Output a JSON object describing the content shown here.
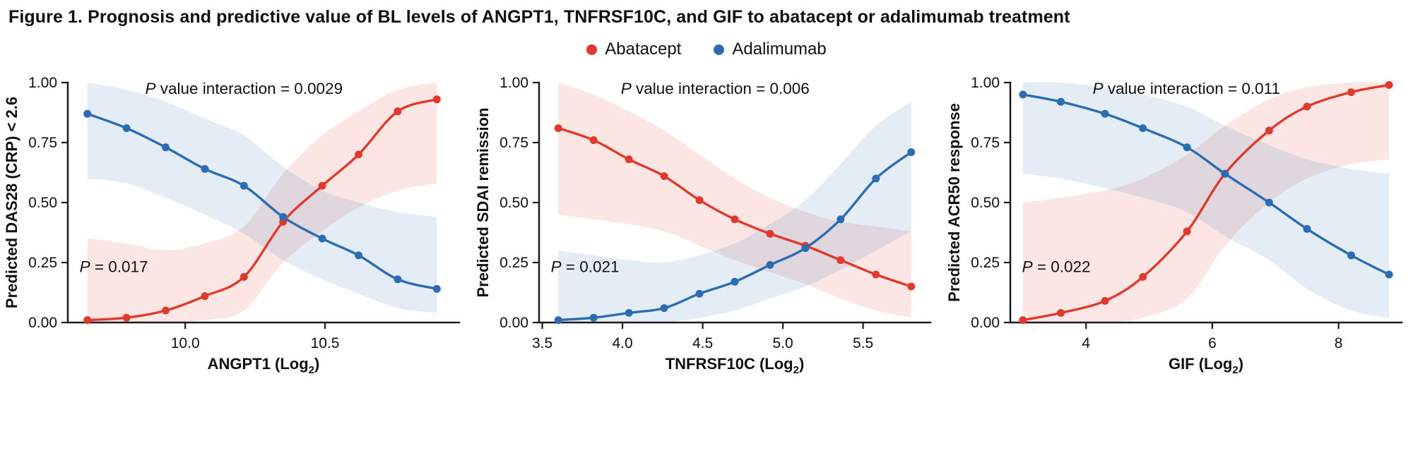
{
  "figure": {
    "title": "Figure 1. Prognosis and predictive value of BL levels of ANGPT1, TNFRSF10C, and GIF to abatacept or adalimumab treatment"
  },
  "legend": {
    "position": "top-center",
    "items": [
      {
        "label": "Abatacept",
        "color": "#e03a2e",
        "marker": "circle"
      },
      {
        "label": "Adalimumab",
        "color": "#2b6cb3",
        "marker": "circle"
      }
    ]
  },
  "chart_data": [
    {
      "id": "angpt1",
      "type": "line",
      "ylabel": "Predicted DAS28 (CRP) < 2.6",
      "xlabel_pre": "ANGPT1 (Log",
      "xlabel_sub": "2",
      "xlabel_post": ")",
      "xlim": [
        9.58,
        10.98
      ],
      "ylim": [
        0,
        1
      ],
      "xticks": [
        10.0,
        10.5
      ],
      "xtick_labels": [
        "10.0",
        "10.5"
      ],
      "yticks": [
        0,
        0.25,
        0.5,
        0.75,
        1
      ],
      "ytick_labels": [
        "0.00",
        "0.25",
        "0.50",
        "0.75",
        "1.00"
      ],
      "grid": false,
      "annotations": {
        "p_interaction": "P value interaction = 0.0029",
        "p_value": "P = 0.017"
      },
      "x": [
        9.65,
        9.79,
        9.93,
        10.07,
        10.21,
        10.35,
        10.49,
        10.62,
        10.76,
        10.9
      ],
      "series": [
        {
          "name": "Abatacept",
          "color": "#e03a2e",
          "values": [
            0.01,
            0.02,
            0.05,
            0.11,
            0.19,
            0.42,
            0.57,
            0.7,
            0.88,
            0.93
          ],
          "band_upper": [
            0.35,
            0.33,
            0.3,
            0.33,
            0.4,
            0.62,
            0.78,
            0.88,
            0.97,
            1.0
          ],
          "band_lower": [
            0.0,
            0.0,
            0.0,
            0.01,
            0.05,
            0.25,
            0.38,
            0.48,
            0.55,
            0.58
          ]
        },
        {
          "name": "Adalimumab",
          "color": "#2b6cb3",
          "values": [
            0.87,
            0.81,
            0.73,
            0.64,
            0.57,
            0.44,
            0.35,
            0.28,
            0.18,
            0.14
          ],
          "band_upper": [
            1.0,
            0.97,
            0.92,
            0.85,
            0.78,
            0.65,
            0.55,
            0.5,
            0.46,
            0.44
          ],
          "band_lower": [
            0.6,
            0.58,
            0.52,
            0.45,
            0.37,
            0.26,
            0.18,
            0.12,
            0.06,
            0.04
          ]
        }
      ]
    },
    {
      "id": "tnfrsf10c",
      "type": "line",
      "ylabel": "Predicted SDAI remission",
      "xlabel_pre": "TNFRSF10C (Log",
      "xlabel_sub": "2",
      "xlabel_post": ")",
      "xlim": [
        3.48,
        5.92
      ],
      "ylim": [
        0,
        1
      ],
      "xticks": [
        3.5,
        4.0,
        4.5,
        5.0,
        5.5
      ],
      "xtick_labels": [
        "3.5",
        "4.0",
        "4.5",
        "5.0",
        "5.5"
      ],
      "yticks": [
        0,
        0.25,
        0.5,
        0.75,
        1
      ],
      "ytick_labels": [
        "0.00",
        "0.25",
        "0.50",
        "0.75",
        "1.00"
      ],
      "grid": false,
      "annotations": {
        "p_interaction": "P value interaction = 0.006",
        "p_value": "P = 0.021"
      },
      "x": [
        3.6,
        3.82,
        4.04,
        4.26,
        4.48,
        4.7,
        4.92,
        5.14,
        5.36,
        5.58,
        5.8
      ],
      "series": [
        {
          "name": "Abatacept",
          "color": "#e03a2e",
          "values": [
            0.81,
            0.76,
            0.68,
            0.61,
            0.51,
            0.43,
            0.37,
            0.32,
            0.26,
            0.2,
            0.15
          ],
          "band_upper": [
            1.0,
            0.95,
            0.88,
            0.8,
            0.7,
            0.6,
            0.52,
            0.46,
            0.42,
            0.4,
            0.38
          ],
          "band_lower": [
            0.45,
            0.43,
            0.41,
            0.38,
            0.32,
            0.26,
            0.21,
            0.16,
            0.1,
            0.05,
            0.02
          ]
        },
        {
          "name": "Adalimumab",
          "color": "#2b6cb3",
          "values": [
            0.01,
            0.02,
            0.04,
            0.06,
            0.12,
            0.17,
            0.24,
            0.31,
            0.43,
            0.6,
            0.71
          ],
          "band_upper": [
            0.3,
            0.28,
            0.26,
            0.25,
            0.28,
            0.33,
            0.41,
            0.51,
            0.66,
            0.82,
            0.92
          ],
          "band_lower": [
            0.0,
            0.0,
            0.0,
            0.0,
            0.02,
            0.05,
            0.1,
            0.15,
            0.22,
            0.3,
            0.38
          ]
        }
      ]
    },
    {
      "id": "gif",
      "type": "line",
      "ylabel": "Predicted ACR50 response",
      "xlabel_pre": "GIF (Log",
      "xlabel_sub": "2",
      "xlabel_post": ")",
      "xlim": [
        2.8,
        9.0
      ],
      "ylim": [
        0,
        1
      ],
      "xticks": [
        4,
        6,
        8
      ],
      "xtick_labels": [
        "4",
        "6",
        "8"
      ],
      "yticks": [
        0,
        0.25,
        0.5,
        0.75,
        1
      ],
      "ytick_labels": [
        "0.00",
        "0.25",
        "0.50",
        "0.75",
        "1.00"
      ],
      "grid": false,
      "annotations": {
        "p_interaction": "P value interaction = 0.011",
        "p_value": "P = 0.022"
      },
      "x": [
        3.0,
        3.6,
        4.3,
        4.9,
        5.6,
        6.2,
        6.9,
        7.5,
        8.2,
        8.8
      ],
      "series": [
        {
          "name": "Abatacept",
          "color": "#e03a2e",
          "values": [
            0.01,
            0.04,
            0.09,
            0.19,
            0.38,
            0.62,
            0.8,
            0.9,
            0.96,
            0.99
          ],
          "band_upper": [
            0.5,
            0.52,
            0.55,
            0.6,
            0.7,
            0.82,
            0.93,
            0.98,
            1.0,
            1.0
          ],
          "band_lower": [
            0.0,
            0.0,
            0.0,
            0.02,
            0.1,
            0.32,
            0.5,
            0.6,
            0.66,
            0.68
          ]
        },
        {
          "name": "Adalimumab",
          "color": "#2b6cb3",
          "values": [
            0.95,
            0.92,
            0.87,
            0.81,
            0.73,
            0.62,
            0.5,
            0.39,
            0.28,
            0.2
          ],
          "band_upper": [
            1.0,
            1.0,
            0.98,
            0.95,
            0.9,
            0.82,
            0.74,
            0.68,
            0.64,
            0.62
          ],
          "band_lower": [
            0.62,
            0.6,
            0.56,
            0.52,
            0.46,
            0.36,
            0.26,
            0.14,
            0.05,
            0.02
          ]
        }
      ]
    }
  ]
}
